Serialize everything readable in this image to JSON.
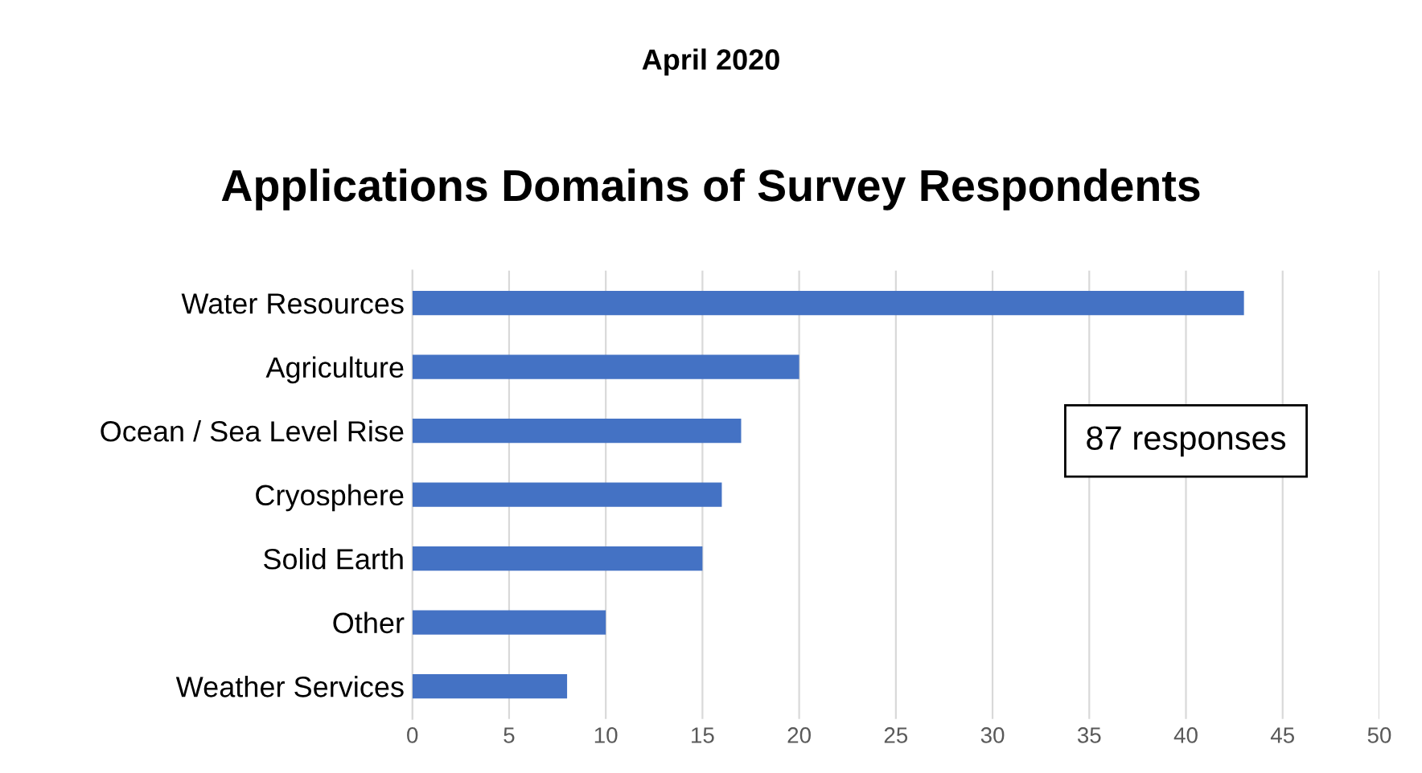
{
  "chart_data": {
    "type": "bar",
    "orientation": "horizontal",
    "subtitle": "April 2020",
    "title": "Applications Domains of Survey Respondents",
    "categories": [
      "Water Resources",
      "Agriculture",
      "Ocean / Sea Level Rise",
      "Cryosphere",
      "Solid Earth",
      "Other",
      "Weather Services"
    ],
    "values": [
      43,
      20,
      17,
      16,
      15,
      10,
      8
    ],
    "color": "#4472c4",
    "xlim": [
      0,
      50
    ],
    "xticks": [
      0,
      5,
      10,
      15,
      20,
      25,
      30,
      35,
      40,
      45,
      50
    ],
    "grid": "x",
    "annotations": [
      "87 responses"
    ]
  }
}
